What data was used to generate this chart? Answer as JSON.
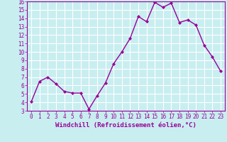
{
  "x": [
    0,
    1,
    2,
    3,
    4,
    5,
    6,
    7,
    8,
    9,
    10,
    11,
    12,
    13,
    14,
    15,
    16,
    17,
    18,
    19,
    20,
    21,
    22,
    23
  ],
  "y": [
    4.1,
    6.5,
    7.0,
    6.2,
    5.3,
    5.1,
    5.1,
    3.2,
    4.8,
    6.3,
    8.6,
    10.0,
    11.6,
    14.2,
    13.6,
    15.9,
    15.3,
    15.8,
    13.5,
    13.8,
    13.2,
    10.8,
    9.4,
    7.7
  ],
  "line_color": "#990099",
  "marker": "D",
  "marker_size": 2.0,
  "linewidth": 1.0,
  "bg_color": "#c8eef0",
  "grid_color": "#ffffff",
  "xlabel": "Windchill (Refroidissement éolien,°C)",
  "xlim": [
    -0.5,
    23.5
  ],
  "ylim": [
    3,
    16
  ],
  "yticks": [
    3,
    4,
    5,
    6,
    7,
    8,
    9,
    10,
    11,
    12,
    13,
    14,
    15,
    16
  ],
  "xticks": [
    0,
    1,
    2,
    3,
    4,
    5,
    6,
    7,
    8,
    9,
    10,
    11,
    12,
    13,
    14,
    15,
    16,
    17,
    18,
    19,
    20,
    21,
    22,
    23
  ],
  "tick_color": "#990099",
  "label_color": "#990099",
  "tick_fontsize": 5.5,
  "xlabel_fontsize": 6.5
}
